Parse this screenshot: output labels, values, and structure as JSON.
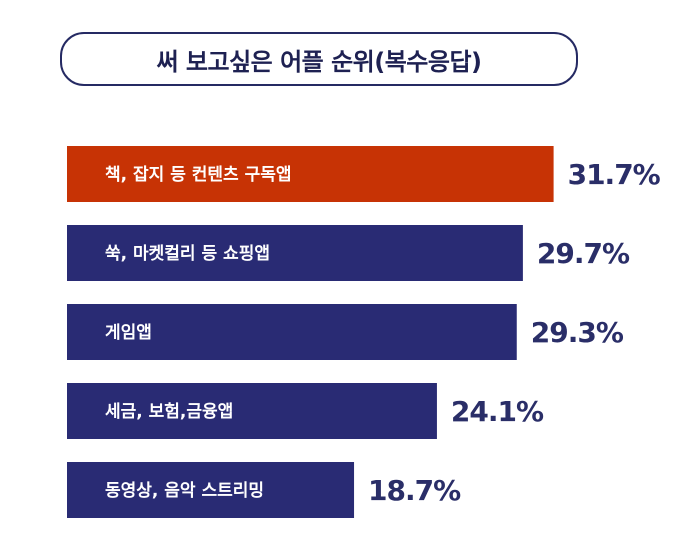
{
  "chart_data": {
    "type": "bar",
    "orientation": "horizontal",
    "title": "써 보고싶은 어플 순위(복수응답)",
    "categories": [
      "책, 잡지 등 컨텐츠 구독앱",
      "쑥, 마켓컬리 등 쇼핑앱",
      "게임앱",
      "세금, 보험,금융앱",
      "동영상, 음악 스트리밍"
    ],
    "values": [
      31.7,
      29.7,
      29.3,
      24.1,
      18.7
    ],
    "value_labels": [
      "31.7%",
      "29.7%",
      "29.3%",
      "24.1%",
      "18.7%"
    ],
    "unit": "%",
    "highlight_color": "#c73305",
    "bar_color": "#292b74",
    "text_color": "#2a2e68",
    "grid": false,
    "legend": "none"
  }
}
